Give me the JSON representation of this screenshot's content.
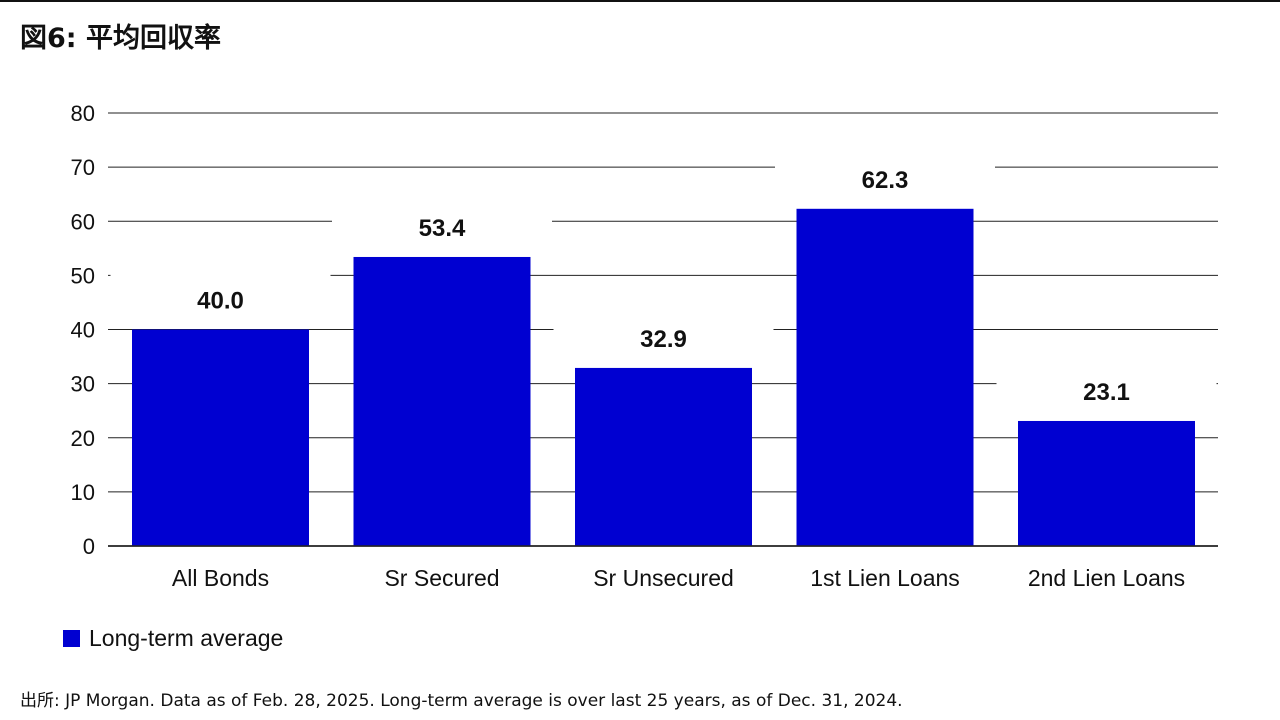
{
  "title": "図6: 平均回収率",
  "source": "出所: JP Morgan. Data as of Feb. 28, 2025. Long-term average is over last 25 years, as of Dec. 31, 2024.",
  "legend": {
    "label": "Long-term average"
  },
  "colors": {
    "bar": "#0000d1",
    "grid": "#222222",
    "text": "#111111"
  },
  "chart_data": {
    "type": "bar",
    "categories": [
      "All Bonds",
      "Sr Secured",
      "Sr Unsecured",
      "1st Lien Loans",
      "2nd Lien Loans"
    ],
    "series": [
      {
        "name": "Long-term average",
        "values": [
          40.0,
          53.4,
          32.9,
          62.3,
          23.1
        ]
      }
    ],
    "value_labels": [
      "40.0",
      "53.4",
      "32.9",
      "62.3",
      "23.1"
    ],
    "ylim": [
      0,
      80
    ],
    "yticks": [
      0,
      10,
      20,
      30,
      40,
      50,
      60,
      70,
      80
    ],
    "grid": true,
    "legend_position": "bottom-left",
    "data_labels": true
  }
}
